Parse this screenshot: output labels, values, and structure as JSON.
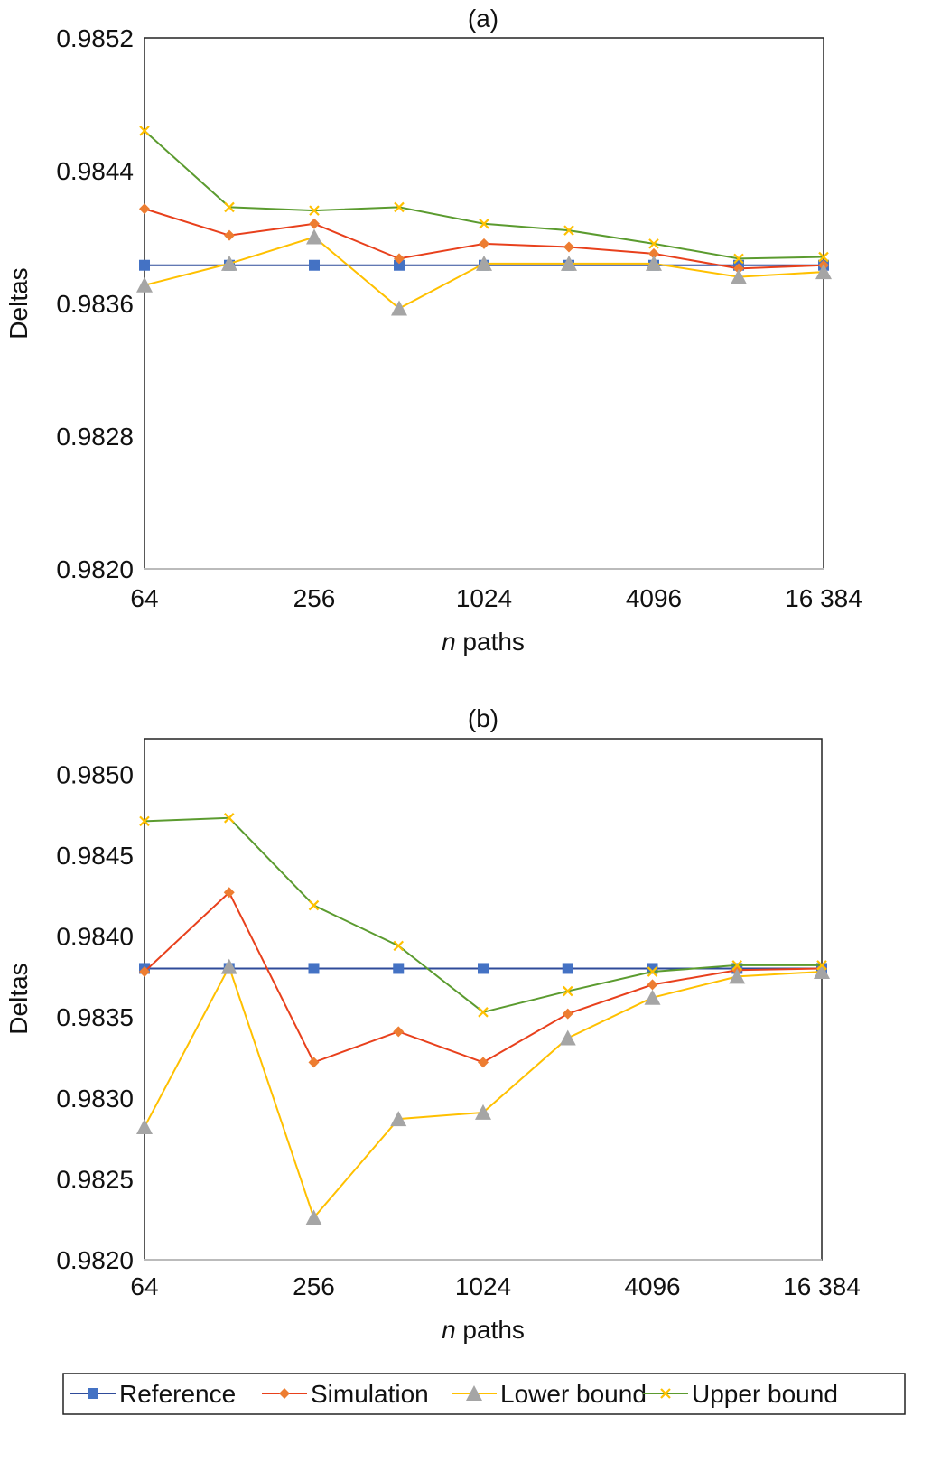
{
  "chart_data": [
    {
      "type": "line",
      "title": "(a)",
      "xlabel_italic": "n",
      "xlabel_rest": " paths",
      "ylabel": "Deltas",
      "x": [
        64,
        128,
        256,
        512,
        1024,
        2048,
        4096,
        8192,
        16384
      ],
      "x_scale": "log2",
      "xticks": [
        64,
        256,
        1024,
        4096,
        16384
      ],
      "xtick_labels": [
        "64",
        "256",
        "1024",
        "4096",
        "16 384"
      ],
      "ylim": [
        0.982,
        0.9852
      ],
      "yticks": [
        0.982,
        0.9828,
        0.9836,
        0.9844,
        0.9852
      ],
      "ytick_labels": [
        "0.9820",
        "0.9828",
        "0.9836",
        "0.9844",
        "0.9852"
      ],
      "grid": false,
      "series": [
        {
          "name": "Reference",
          "values": [
            0.98383,
            0.98383,
            0.98383,
            0.98383,
            0.98383,
            0.98383,
            0.98383,
            0.98383,
            0.98383
          ]
        },
        {
          "name": "Simulation",
          "values": [
            0.98417,
            0.98401,
            0.98408,
            0.98387,
            0.98396,
            0.98394,
            0.9839,
            0.98381,
            0.98383
          ]
        },
        {
          "name": "Lower bound",
          "values": [
            0.98371,
            0.98384,
            0.984,
            0.98357,
            0.98384,
            0.98384,
            0.98384,
            0.98376,
            0.98379
          ]
        },
        {
          "name": "Upper bound",
          "values": [
            0.98464,
            0.98418,
            0.98416,
            0.98418,
            0.98408,
            0.98404,
            0.98396,
            0.98387,
            0.98388
          ]
        }
      ]
    },
    {
      "type": "line",
      "title": "(b)",
      "xlabel_italic": "n",
      "xlabel_rest": " paths",
      "ylabel": "Deltas",
      "x": [
        64,
        128,
        256,
        512,
        1024,
        2048,
        4096,
        8192,
        16384
      ],
      "x_scale": "log2",
      "xticks": [
        64,
        256,
        1024,
        4096,
        16384
      ],
      "xtick_labels": [
        "64",
        "256",
        "1024",
        "4096",
        "16 384"
      ],
      "ylim": [
        0.982,
        0.98522
      ],
      "yticks": [
        0.982,
        0.9825,
        0.983,
        0.9835,
        0.984,
        0.9845,
        0.985
      ],
      "ytick_labels": [
        "0.9820",
        "0.9825",
        "0.9830",
        "0.9835",
        "0.9840",
        "0.9845",
        "0.9850"
      ],
      "grid": false,
      "series": [
        {
          "name": "Reference",
          "values": [
            0.9838,
            0.9838,
            0.9838,
            0.9838,
            0.9838,
            0.9838,
            0.9838,
            0.9838,
            0.9838
          ]
        },
        {
          "name": "Simulation",
          "values": [
            0.98378,
            0.98427,
            0.98322,
            0.98341,
            0.98322,
            0.98352,
            0.9837,
            0.98379,
            0.9838
          ]
        },
        {
          "name": "Lower bound",
          "values": [
            0.98282,
            0.98381,
            0.98226,
            0.98287,
            0.98291,
            0.98337,
            0.98362,
            0.98375,
            0.98378
          ]
        },
        {
          "name": "Upper bound",
          "values": [
            0.98471,
            0.98473,
            0.98419,
            0.98394,
            0.98353,
            0.98366,
            0.98378,
            0.98382,
            0.98382
          ]
        }
      ]
    }
  ],
  "legend": {
    "placement": "bottom",
    "entries": [
      "Reference",
      "Simulation",
      "Lower bound",
      "Upper bound"
    ]
  },
  "colors": {
    "reference_line": "#2F4B9A",
    "reference_marker": "#4472C4",
    "simulation_line": "#E8401C",
    "simulation_marker": "#ED7D31",
    "lower_line": "#FFC000",
    "lower_marker": "#A5A5A5",
    "upper_line": "#5B9B2F",
    "upper_marker": "#FFC000"
  }
}
